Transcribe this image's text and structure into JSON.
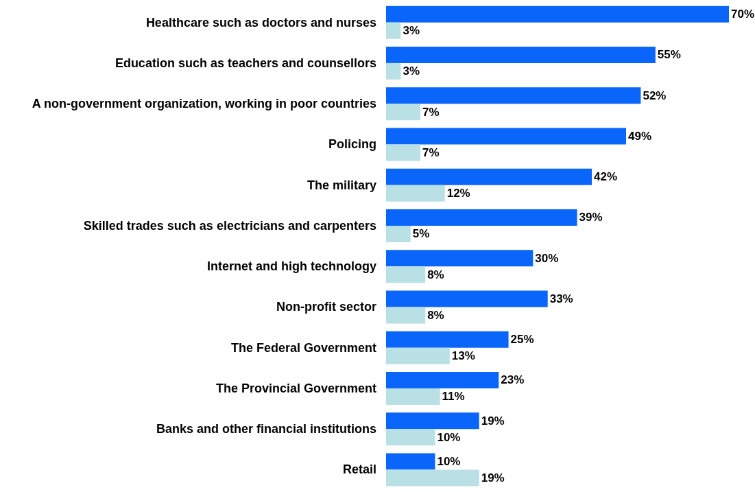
{
  "chart_data": {
    "type": "bar",
    "orientation": "horizontal",
    "categories": [
      "Healthcare such as doctors and nurses",
      "Education such as teachers and counsellors",
      "A non-government organization, working in poor countries",
      "Policing",
      "The military",
      "Skilled trades such as electricians and carpenters",
      "Internet and high technology",
      "Non-profit sector",
      "The Federal Government",
      "The Provincial Government",
      "Banks and other financial institutions",
      "Retail"
    ],
    "series": [
      {
        "color": "#0a66fa",
        "values": [
          70,
          55,
          52,
          49,
          42,
          39,
          30,
          33,
          25,
          23,
          19,
          10
        ],
        "value_labels": [
          "70%",
          "55%",
          "52%",
          "49%",
          "42%",
          "39%",
          "30%",
          "33%",
          "25%",
          "23%",
          "19%",
          "10%"
        ]
      },
      {
        "color": "#b9e0e4",
        "values": [
          3,
          3,
          7,
          7,
          12,
          5,
          8,
          8,
          13,
          11,
          10,
          19
        ],
        "value_labels": [
          "3%",
          "3%",
          "7%",
          "7%",
          "12%",
          "5%",
          "8%",
          "8%",
          "13%",
          "11%",
          "10%",
          "19%"
        ]
      }
    ]
  }
}
